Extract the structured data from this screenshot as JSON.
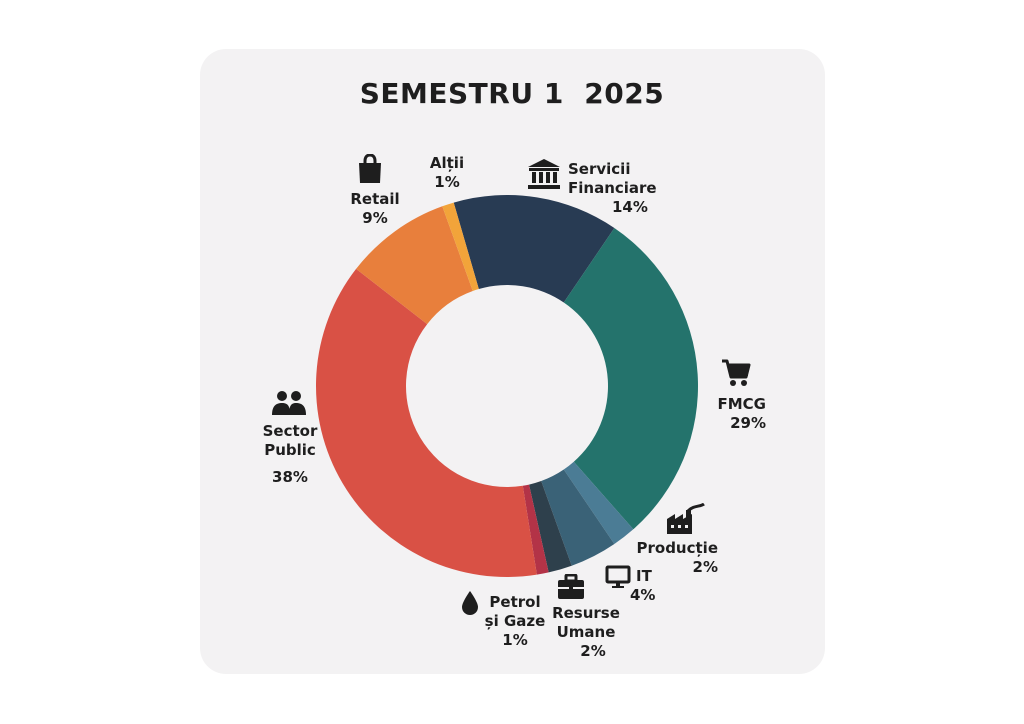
{
  "chart_data": {
    "type": "pie",
    "title": "SEMESTRU 1  2025",
    "categories": [
      "Servicii Financiare",
      "FMCG",
      "Producție",
      "IT",
      "Resurse Umane",
      "Petrol și Gaze",
      "Sector Public",
      "Retail",
      "Alții"
    ],
    "values": [
      14,
      29,
      2,
      4,
      2,
      1,
      38,
      9,
      1
    ],
    "labels": [
      "14%",
      "29%",
      "2%",
      "4%",
      "2%",
      "1%",
      "38%",
      "9%",
      "1%"
    ],
    "colors": [
      "#283b53",
      "#24736c",
      "#4b7c95",
      "#3a6277",
      "#2e404c",
      "#b33347",
      "#d95145",
      "#e87f3c",
      "#f2a43a"
    ],
    "donut": true,
    "start": "top",
    "direction": "clockwise"
  },
  "labels": {
    "servicii_name_1": "Servicii",
    "servicii_name_2": "Financiare",
    "servicii_pct": "14%",
    "fmcg_name": "FMCG",
    "fmcg_pct": "29%",
    "productie_name": "Producție",
    "productie_pct": "2%",
    "it_name": "IT",
    "it_pct": "4%",
    "resurse_name_1": "Resurse",
    "resurse_name_2": "Umane",
    "resurse_pct": "2%",
    "petrol_name_1": "Petrol",
    "petrol_name_2": "și Gaze",
    "petrol_pct": "1%",
    "sector_name_1": "Sector",
    "sector_name_2": "Public",
    "sector_pct": "38%",
    "retail_name": "Retail",
    "retail_pct": "9%",
    "altii_name": "Alții",
    "altii_pct": "1%"
  },
  "icons": {
    "servicii": "bank-icon",
    "fmcg": "shopping-cart-icon",
    "productie": "factory-icon",
    "it": "monitor-icon",
    "resurse": "briefcase-icon",
    "petrol": "oil-drop-icon",
    "sector": "users-icon",
    "retail": "shopping-bag-icon"
  }
}
